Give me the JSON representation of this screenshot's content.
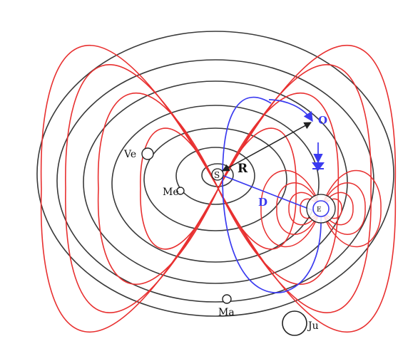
{
  "diagram": {
    "labels": {
      "sun": "S",
      "radius": "R",
      "distance": "D",
      "orbit": "O",
      "venus": "Ve",
      "mercury": "Me",
      "mars": "Ma",
      "jupiter": "Ju",
      "earth": "E"
    },
    "colors": {
      "orbits": "#3a3a3a",
      "field_lines": "#e83030",
      "orbit_path": "#3b3bf0",
      "arrows": "#222222",
      "background": "#ffffff"
    }
  }
}
